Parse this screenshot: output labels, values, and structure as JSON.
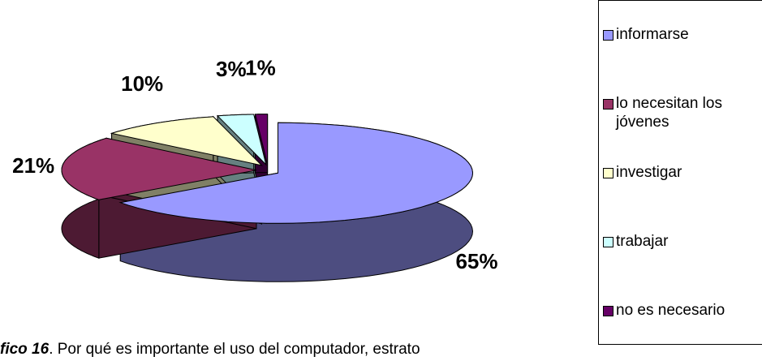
{
  "chart_data": {
    "type": "pie3d",
    "categories": [
      "informarse",
      "lo necesitan los jóvenes",
      "investigar",
      "trabajar",
      "no es necesario"
    ],
    "values": [
      65,
      21,
      10,
      3,
      1
    ],
    "value_labels": [
      "65%",
      "21%",
      "10%",
      "3%",
      "1%"
    ],
    "colors": [
      "#9999ff",
      "#993366",
      "#ffffcc",
      "#ccffff",
      "#660066"
    ],
    "legend": "right",
    "caption": {
      "label": "fico 16",
      "text": ". Por qué es importante el uso del computador, estrato"
    }
  }
}
